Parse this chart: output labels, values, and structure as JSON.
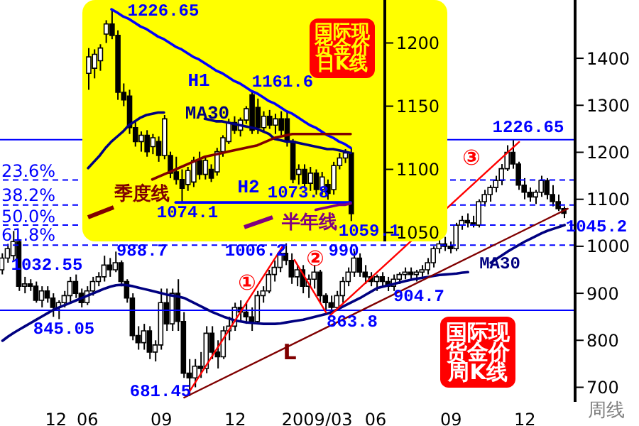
{
  "chart_data": [
    {
      "type": "candlestick",
      "title": "国际现货金价周K线",
      "xlabel": "周线",
      "color": "#000000",
      "x": [
        "2008-03-03",
        "2008-03-10",
        "2008-03-17",
        "2008-03-24",
        "2008-03-31",
        "2008-04-07",
        "2008-04-14",
        "2008-04-21",
        "2008-04-28",
        "2008-05-05",
        "2008-05-12",
        "2008-05-19",
        "2008-05-26",
        "2008-06-02",
        "2008-06-09",
        "2008-06-16",
        "2008-06-23",
        "2008-06-30",
        "2008-07-07",
        "2008-07-14",
        "2008-07-21",
        "2008-07-28",
        "2008-08-04",
        "2008-08-11",
        "2008-08-18",
        "2008-08-25",
        "2008-09-01",
        "2008-09-08",
        "2008-09-15",
        "2008-09-22",
        "2008-09-29",
        "2008-10-06",
        "2008-10-13",
        "2008-10-20",
        "2008-10-27",
        "2008-11-03",
        "2008-11-10",
        "2008-11-17",
        "2008-11-24",
        "2008-12-01",
        "2008-12-08",
        "2008-12-15",
        "2008-12-22",
        "2008-12-29",
        "2009-01-05",
        "2009-01-12",
        "2009-01-19",
        "2009-01-26",
        "2009-02-02",
        "2009-02-09",
        "2009-02-16",
        "2009-02-23",
        "2009-03-02",
        "2009-03-09",
        "2009-03-16",
        "2009-03-23",
        "2009-03-30",
        "2009-04-06",
        "2009-04-13",
        "2009-04-20",
        "2009-04-27",
        "2009-05-04",
        "2009-05-11",
        "2009-05-18",
        "2009-05-25",
        "2009-06-01",
        "2009-06-08",
        "2009-06-15",
        "2009-06-22",
        "2009-06-29",
        "2009-07-06",
        "2009-07-13",
        "2009-07-20",
        "2009-07-27",
        "2009-08-03",
        "2009-08-10",
        "2009-08-17",
        "2009-08-24",
        "2009-08-31",
        "2009-09-07",
        "2009-09-14",
        "2009-09-21",
        "2009-09-28",
        "2009-10-05",
        "2009-10-12",
        "2009-10-19",
        "2009-10-26",
        "2009-11-02",
        "2009-11-09",
        "2009-11-16",
        "2009-11-23",
        "2009-11-30",
        "2009-12-07",
        "2009-12-14",
        "2009-12-21",
        "2009-12-28",
        "2010-01-04",
        "2010-01-11",
        "2010-01-18",
        "2010-01-25"
      ],
      "ohlc": [
        [
          950,
          985,
          940,
          975
        ],
        [
          975,
          1005,
          965,
          995
        ],
        [
          980,
          1032.55,
          970,
          1010
        ],
        [
          1010,
          1015,
          905,
          915
        ],
        [
          915,
          935,
          900,
          920
        ],
        [
          920,
          930,
          905,
          915
        ],
        [
          915,
          925,
          880,
          885
        ],
        [
          885,
          915,
          870,
          905
        ],
        [
          905,
          915,
          880,
          890
        ],
        [
          890,
          900,
          850,
          870
        ],
        [
          870,
          885,
          845.05,
          880
        ],
        [
          880,
          905,
          870,
          895
        ],
        [
          895,
          935,
          880,
          925
        ],
        [
          925,
          940,
          890,
          900
        ],
        [
          900,
          910,
          870,
          880
        ],
        [
          880,
          915,
          875,
          905
        ],
        [
          905,
          935,
          895,
          925
        ],
        [
          925,
          945,
          915,
          935
        ],
        [
          935,
          980,
          925,
          960
        ],
        [
          960,
          975,
          935,
          950
        ],
        [
          950,
          988.7,
          945,
          965
        ],
        [
          965,
          970,
          915,
          925
        ],
        [
          925,
          930,
          880,
          890
        ],
        [
          890,
          900,
          800,
          810
        ],
        [
          810,
          830,
          780,
          795
        ],
        [
          795,
          835,
          780,
          820
        ],
        [
          820,
          830,
          760,
          775
        ],
        [
          775,
          800,
          755,
          790
        ],
        [
          790,
          910,
          780,
          880
        ],
        [
          880,
          910,
          820,
          835
        ],
        [
          835,
          910,
          820,
          900
        ],
        [
          900,
          930,
          820,
          840
        ],
        [
          840,
          860,
          720,
          730
        ],
        [
          730,
          760,
          681.45,
          720
        ],
        [
          720,
          760,
          700,
          745
        ],
        [
          745,
          775,
          720,
          740
        ],
        [
          740,
          830,
          730,
          815
        ],
        [
          815,
          830,
          760,
          775
        ],
        [
          775,
          800,
          740,
          765
        ],
        [
          765,
          830,
          760,
          820
        ],
        [
          820,
          850,
          800,
          830
        ],
        [
          830,
          880,
          820,
          870
        ],
        [
          870,
          885,
          840,
          860
        ],
        [
          860,
          880,
          835,
          850
        ],
        [
          850,
          870,
          820,
          840
        ],
        [
          840,
          905,
          835,
          895
        ],
        [
          895,
          915,
          880,
          905
        ],
        [
          905,
          950,
          900,
          940
        ],
        [
          940,
          970,
          925,
          955
        ],
        [
          955,
          995,
          945,
          985
        ],
        [
          985,
          1006.2,
          960,
          970
        ],
        [
          970,
          985,
          920,
          935
        ],
        [
          935,
          960,
          915,
          950
        ],
        [
          950,
          960,
          900,
          915
        ],
        [
          915,
          940,
          890,
          930
        ],
        [
          930,
          960,
          910,
          945
        ],
        [
          945,
          950,
          880,
          895
        ],
        [
          895,
          900,
          865,
          880
        ],
        [
          880,
          895,
          863.8,
          870
        ],
        [
          870,
          905,
          865,
          895
        ],
        [
          895,
          935,
          880,
          925
        ],
        [
          925,
          955,
          915,
          945
        ],
        [
          945,
          990,
          935,
          975
        ],
        [
          975,
          985,
          935,
          945
        ],
        [
          945,
          960,
          920,
          935
        ],
        [
          935,
          945,
          915,
          925
        ],
        [
          925,
          940,
          905,
          935
        ],
        [
          935,
          945,
          915,
          925
        ],
        [
          925,
          935,
          904.7,
          915
        ],
        [
          915,
          940,
          905,
          930
        ],
        [
          930,
          945,
          920,
          940
        ],
        [
          940,
          955,
          930,
          945
        ],
        [
          945,
          955,
          930,
          940
        ],
        [
          940,
          950,
          925,
          945
        ],
        [
          945,
          960,
          935,
          950
        ],
        [
          950,
          975,
          940,
          965
        ],
        [
          965,
          1000,
          955,
          995
        ],
        [
          995,
          1015,
          985,
          1005
        ],
        [
          1005,
          1020,
          990,
          1000
        ],
        [
          1000,
          1010,
          985,
          995
        ],
        [
          995,
          1050,
          990,
          1045
        ],
        [
          1045,
          1065,
          1035,
          1055
        ],
        [
          1055,
          1070,
          1040,
          1050
        ],
        [
          1050,
          1065,
          1040,
          1045
        ],
        [
          1045,
          1100,
          1040,
          1095
        ],
        [
          1095,
          1120,
          1085,
          1110
        ],
        [
          1110,
          1130,
          1095,
          1125
        ],
        [
          1125,
          1150,
          1115,
          1140
        ],
        [
          1140,
          1175,
          1130,
          1165
        ],
        [
          1165,
          1215,
          1160,
          1200
        ],
        [
          1200,
          1226.65,
          1165,
          1175
        ],
        [
          1175,
          1180,
          1120,
          1130
        ],
        [
          1130,
          1145,
          1100,
          1115
        ],
        [
          1115,
          1125,
          1095,
          1105
        ],
        [
          1105,
          1120,
          1090,
          1115
        ],
        [
          1115,
          1150,
          1105,
          1140
        ],
        [
          1140,
          1145,
          1100,
          1110
        ],
        [
          1110,
          1130,
          1085,
          1095
        ],
        [
          1095,
          1110,
          1075,
          1080
        ],
        [
          1080,
          1085,
          1060,
          1070
        ]
      ],
      "series": [
        {
          "name": "MA30",
          "type": "line",
          "color": "#000080",
          "values": [
            799,
            808,
            816,
            823,
            830,
            837,
            844,
            851,
            858,
            865,
            870,
            875,
            880,
            885,
            890,
            895,
            900,
            905,
            910,
            914,
            917,
            918,
            917,
            915,
            912,
            909,
            906,
            903,
            900,
            897,
            895,
            893,
            890,
            884,
            878,
            872,
            866,
            860,
            855,
            850,
            846,
            842,
            840,
            838,
            837,
            836,
            835,
            835,
            835,
            836,
            838,
            840,
            842,
            844,
            847,
            850,
            853,
            856,
            860,
            866,
            872,
            878,
            884,
            890,
            897,
            904,
            911,
            914,
            917,
            920,
            923,
            926,
            929,
            931,
            933,
            935,
            937,
            939,
            940,
            941,
            942,
            944,
            945,
            null,
            null,
            null,
            965,
            973,
            981,
            989,
            996,
            1003,
            1010,
            1016,
            1022,
            1028,
            1033,
            1037,
            1041,
            1045.2
          ]
        },
        {
          "name": "①",
          "type": "line",
          "color": "#ff0000",
          "x": [
            "2008-10-18",
            "2009-02-12"
          ],
          "values": [
            687,
            1001
          ]
        },
        {
          "name": "②",
          "type": "line",
          "color": "#ff0000",
          "x": [
            "2009-02-26",
            "2009-04-06"
          ],
          "values": [
            971,
            859
          ]
        },
        {
          "name": "③",
          "type": "line",
          "color": "#ff0000",
          "x": [
            "2009-04-11",
            "2009-11-30"
          ],
          "values": [
            853,
            1222
          ]
        },
        {
          "name": "L",
          "type": "line",
          "color": "#800000",
          "x": [
            "2008-10-13",
            "2010-01-29"
          ],
          "values": [
            678,
            1080
          ]
        }
      ],
      "xlim": [
        "2008-02-29",
        "2010-02-07"
      ],
      "xticks": [
        {
          "value": "2008-05-08",
          "label": "12"
        },
        {
          "value": "2008-06-16",
          "label": "06"
        },
        {
          "value": "2008-09-15",
          "label": "09"
        },
        {
          "value": "2008-12-15",
          "label": "12"
        },
        {
          "value": "2009-03-26",
          "label": "2009/03"
        },
        {
          "value": "2009-06-06",
          "label": "06"
        },
        {
          "value": "2009-09-07",
          "label": "09"
        },
        {
          "value": "2009-12-07",
          "label": "12"
        }
      ],
      "ylim": [
        669,
        1524
      ],
      "yticks": [
        700,
        800,
        900,
        1000,
        1100,
        1200,
        1300,
        1400
      ],
      "ref_lines": [
        {
          "axis": "y",
          "value": 1226.65,
          "color": "#0000ff",
          "line_style": "solid"
        },
        {
          "axis": "y",
          "value": 863.8,
          "color": "#0000ff",
          "line_style": "solid"
        },
        {
          "axis": "y",
          "value": 1141,
          "color": "#0000ff",
          "line_style": "dashed"
        },
        {
          "axis": "y",
          "value": 1088,
          "color": "#0000ff",
          "line_style": "dashed"
        },
        {
          "axis": "y",
          "value": 1045.2,
          "color": "#0000ff",
          "line_style": "dashed"
        },
        {
          "axis": "y",
          "value": 1002.4,
          "color": "#0000ff",
          "line_style": "dashed"
        }
      ],
      "annotations": [
        "1226.65",
        "1032.55",
        "988.7",
        "845.05",
        "681.45",
        "1006.2",
        "990",
        "863.8",
        "904.7",
        "1045.2",
        "23.6%",
        "38.2%",
        "50.0%",
        "61.8%"
      ]
    },
    {
      "type": "candlestick",
      "title": "国际现货金价日K线",
      "color": "#000000",
      "categories": [
        null,
        null,
        null,
        null,
        null,
        null,
        null,
        null,
        null,
        null,
        null,
        null,
        null,
        null,
        null,
        null,
        null,
        null,
        null,
        null,
        null,
        null,
        null,
        null,
        null,
        null,
        null,
        null,
        null,
        null,
        null,
        null,
        null,
        null,
        null,
        null,
        null,
        null,
        null,
        null,
        null,
        null,
        null,
        null,
        null,
        null
      ],
      "ohlc": [
        [
          1176,
          1196,
          1163,
          1189
        ],
        [
          1180,
          1195,
          1172,
          1191
        ],
        [
          1186,
          1199,
          1178,
          1196
        ],
        [
          1207,
          1218,
          1200,
          1215
        ],
        [
          1215,
          1226.65,
          1203,
          1206
        ],
        [
          1206,
          1210,
          1155,
          1161
        ],
        [
          1161,
          1168,
          1150,
          1155
        ],
        [
          1158,
          1163,
          1128,
          1133
        ],
        [
          1133,
          1138,
          1118,
          1122
        ],
        [
          1122,
          1130,
          1114,
          1127
        ],
        [
          1127,
          1131,
          1110,
          1114
        ],
        [
          1118,
          1128,
          1112,
          1125
        ],
        [
          1122,
          1126,
          1106,
          1111
        ],
        [
          1111,
          1143,
          1108,
          1140
        ],
        [
          1111,
          1114,
          1093,
          1097
        ],
        [
          1098,
          1110,
          1088,
          1092
        ],
        [
          1092,
          1100,
          1074.1,
          1085
        ],
        [
          1088,
          1102,
          1083,
          1099
        ],
        [
          1090,
          1110,
          1086,
          1107
        ],
        [
          1107,
          1114,
          1092,
          1096
        ],
        [
          1096,
          1110,
          1092,
          1107
        ],
        [
          1100,
          1104,
          1090,
          1093
        ],
        [
          1098,
          1117,
          1095,
          1114
        ],
        [
          1114,
          1127,
          1110,
          1125
        ],
        [
          1122,
          1140,
          1120,
          1137
        ],
        [
          1137,
          1142,
          1128,
          1131
        ],
        [
          1131,
          1141,
          1126,
          1139
        ],
        [
          1139,
          1150,
          1136,
          1148
        ],
        [
          1159,
          1161.6,
          1128,
          1131
        ],
        [
          1149,
          1156,
          1128,
          1133
        ],
        [
          1133,
          1146,
          1130,
          1142
        ],
        [
          1142,
          1147,
          1132,
          1135
        ],
        [
          1135,
          1144,
          1128,
          1140
        ],
        [
          1140,
          1146,
          1127,
          1131
        ],
        [
          1140,
          1146,
          1118,
          1122
        ],
        [
          1122,
          1124,
          1089,
          1092
        ],
        [
          1096,
          1104,
          1088,
          1100
        ],
        [
          1100,
          1104,
          1085,
          1089
        ],
        [
          1089,
          1102,
          1083,
          1097
        ],
        [
          1097,
          1100,
          1080,
          1084
        ],
        [
          1084,
          1098,
          1080,
          1094
        ],
        [
          1088,
          1092,
          1076,
          1081
        ],
        [
          1084,
          1106,
          1080,
          1103
        ],
        [
          1103,
          1113,
          1100,
          1109
        ],
        [
          1109,
          1116,
          1105,
          1113
        ],
        [
          1113,
          1117,
          1059.1,
          1065
        ]
      ],
      "series": [
        {
          "name": "MA30",
          "type": "line",
          "color": "#000080",
          "values": [
            1101,
            1106,
            1111,
            1117,
            1122,
            1126,
            1130,
            1135,
            1138,
            1141,
            1143,
            1144,
            1145,
            1145,
            null,
            null,
            null,
            null,
            null,
            null,
            1140,
            1139,
            1138,
            1138,
            1137,
            1136,
            1135,
            1134,
            1133,
            1132,
            1130,
            1128,
            1124,
            1123,
            1122,
            1122,
            1121,
            1120,
            1119,
            1118,
            1117,
            1116,
            1116,
            1115,
            1114,
            1113
          ]
        },
        {
          "name": "H1",
          "type": "line",
          "color": "#0000ff",
          "values": [
            null,
            null,
            null,
            null,
            1226.65,
            1224,
            1221,
            1219,
            1216,
            1213,
            1211,
            1208,
            1205,
            1203,
            1200,
            1197,
            1195,
            1192,
            1189,
            1187,
            1184,
            1181,
            1178,
            1176,
            1173,
            1170,
            1168,
            1165,
            1162,
            1160,
            1157,
            1154,
            1152,
            1149,
            1146,
            1144,
            1141,
            1138,
            1135,
            1133,
            1130,
            1127,
            1125,
            1122,
            1120,
            1117
          ]
        },
        {
          "name": "H2",
          "type": "line",
          "color": "#0000ff",
          "values": [
            null,
            null,
            null,
            null,
            null,
            null,
            null,
            null,
            null,
            null,
            null,
            null,
            null,
            null,
            null,
            1073.8,
            1073.8,
            1073.8,
            1073.8,
            1073.8,
            1073.8,
            1073.8,
            1073.8,
            1073.8,
            1073.8,
            1073.8,
            1073.8,
            1073.8,
            1073.8,
            1073.8,
            1073.8,
            1073.8,
            1073.8,
            1073.8,
            1073.8,
            1073.8,
            1073.8,
            1073.8,
            1073.8,
            1073.8,
            1073.8,
            1073.8,
            1073.8,
            1073.8,
            1073.8,
            1073.8
          ]
        },
        {
          "name": "季度线",
          "type": "line",
          "color": "#800000",
          "values": [
            null,
            null,
            null,
            null,
            null,
            null,
            null,
            null,
            null,
            null,
            null,
            1092,
            1094,
            1096,
            1098,
            1100,
            1102,
            1104,
            1106,
            1108,
            1110,
            1111,
            1112,
            1113,
            1114,
            1115,
            1116,
            1117,
            1118,
            1119,
            1121,
            1123,
            1125,
            1126,
            1127,
            1128,
            1128,
            1128,
            1128,
            1128,
            1128,
            1128,
            1128,
            1128,
            1128,
            1128
          ]
        },
        {
          "name": "半年线",
          "type": "line",
          "color": "#800080",
          "values": [
            null,
            null,
            null,
            null,
            null,
            null,
            null,
            null,
            null,
            null,
            null,
            null,
            null,
            null,
            null,
            null,
            null,
            null,
            null,
            null,
            null,
            null,
            null,
            null,
            null,
            null,
            null,
            null,
            null,
            null,
            null,
            null,
            null,
            null,
            null,
            null,
            null,
            null,
            null,
            1068,
            1069,
            1070,
            1071,
            1072,
            1072,
            1073
          ]
        }
      ],
      "ylim": [
        1043,
        1234
      ],
      "yticks": [
        1050,
        1100,
        1150,
        1200
      ],
      "tick_labels": "y",
      "annotations": [
        "1226.65",
        "1161.6",
        "1074.1",
        "1073.8",
        "1059.1"
      ]
    }
  ]
}
